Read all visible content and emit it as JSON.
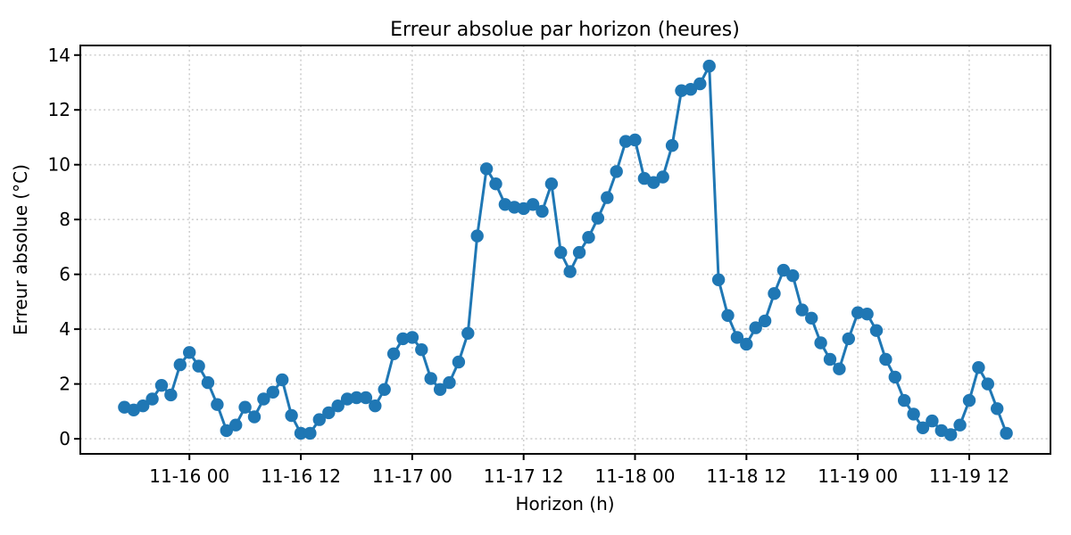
{
  "figure": {
    "title": "Erreur absolue par horizon (heures)",
    "xlabel": "Horizon (h)",
    "ylabel": "Erreur absolue (°C)"
  },
  "chart_data": {
    "type": "line",
    "title": "Erreur absolue par horizon (heures)",
    "xlabel": "Horizon (h)",
    "ylabel": "Erreur absolue (°C)",
    "marker": "o",
    "line_color": "#1f77b4",
    "grid": true,
    "grid_style": "dotted",
    "grid_color": "#cfcfcf",
    "legend": "none",
    "x_start": "11-15 17:00",
    "x_interval_hours": 1,
    "n_points": 96,
    "values": [
      1.15,
      1.05,
      1.2,
      1.45,
      1.95,
      1.6,
      2.7,
      3.15,
      2.65,
      2.05,
      1.25,
      0.3,
      0.5,
      1.15,
      0.8,
      1.45,
      1.7,
      2.15,
      0.85,
      0.2,
      0.2,
      0.7,
      0.95,
      1.2,
      1.45,
      1.5,
      1.5,
      1.2,
      1.8,
      3.1,
      3.65,
      3.7,
      3.25,
      2.2,
      1.8,
      2.05,
      2.8,
      3.85,
      7.4,
      9.85,
      9.3,
      8.55,
      8.45,
      8.4,
      8.55,
      8.3,
      9.3,
      6.8,
      6.1,
      6.8,
      7.35,
      8.05,
      8.8,
      9.75,
      10.85,
      10.9,
      9.5,
      9.35,
      9.55,
      10.7,
      12.7,
      12.75,
      12.95,
      13.6,
      5.8,
      4.5,
      3.7,
      3.45,
      4.05,
      4.3,
      5.3,
      6.15,
      5.95,
      4.7,
      4.4,
      3.5,
      2.9,
      2.55,
      3.65,
      4.6,
      4.55,
      3.95,
      2.9,
      2.25,
      1.4,
      0.9,
      0.4,
      0.65,
      0.3,
      0.15,
      0.5,
      1.4,
      2.6,
      2.0,
      1.1,
      0.2
    ],
    "xticks": [
      {
        "t": 7,
        "label": "11-16 00"
      },
      {
        "t": 19,
        "label": "11-16 12"
      },
      {
        "t": 31,
        "label": "11-17 00"
      },
      {
        "t": 43,
        "label": "11-17 12"
      },
      {
        "t": 55,
        "label": "11-18 00"
      },
      {
        "t": 67,
        "label": "11-18 12"
      },
      {
        "t": 79,
        "label": "11-19 00"
      },
      {
        "t": 91,
        "label": "11-19 12"
      }
    ],
    "yticks": [
      0,
      2,
      4,
      6,
      8,
      10,
      12,
      14
    ],
    "xlim": [
      -4.75,
      99.75
    ],
    "ylim": [
      -0.55,
      14.35
    ]
  }
}
